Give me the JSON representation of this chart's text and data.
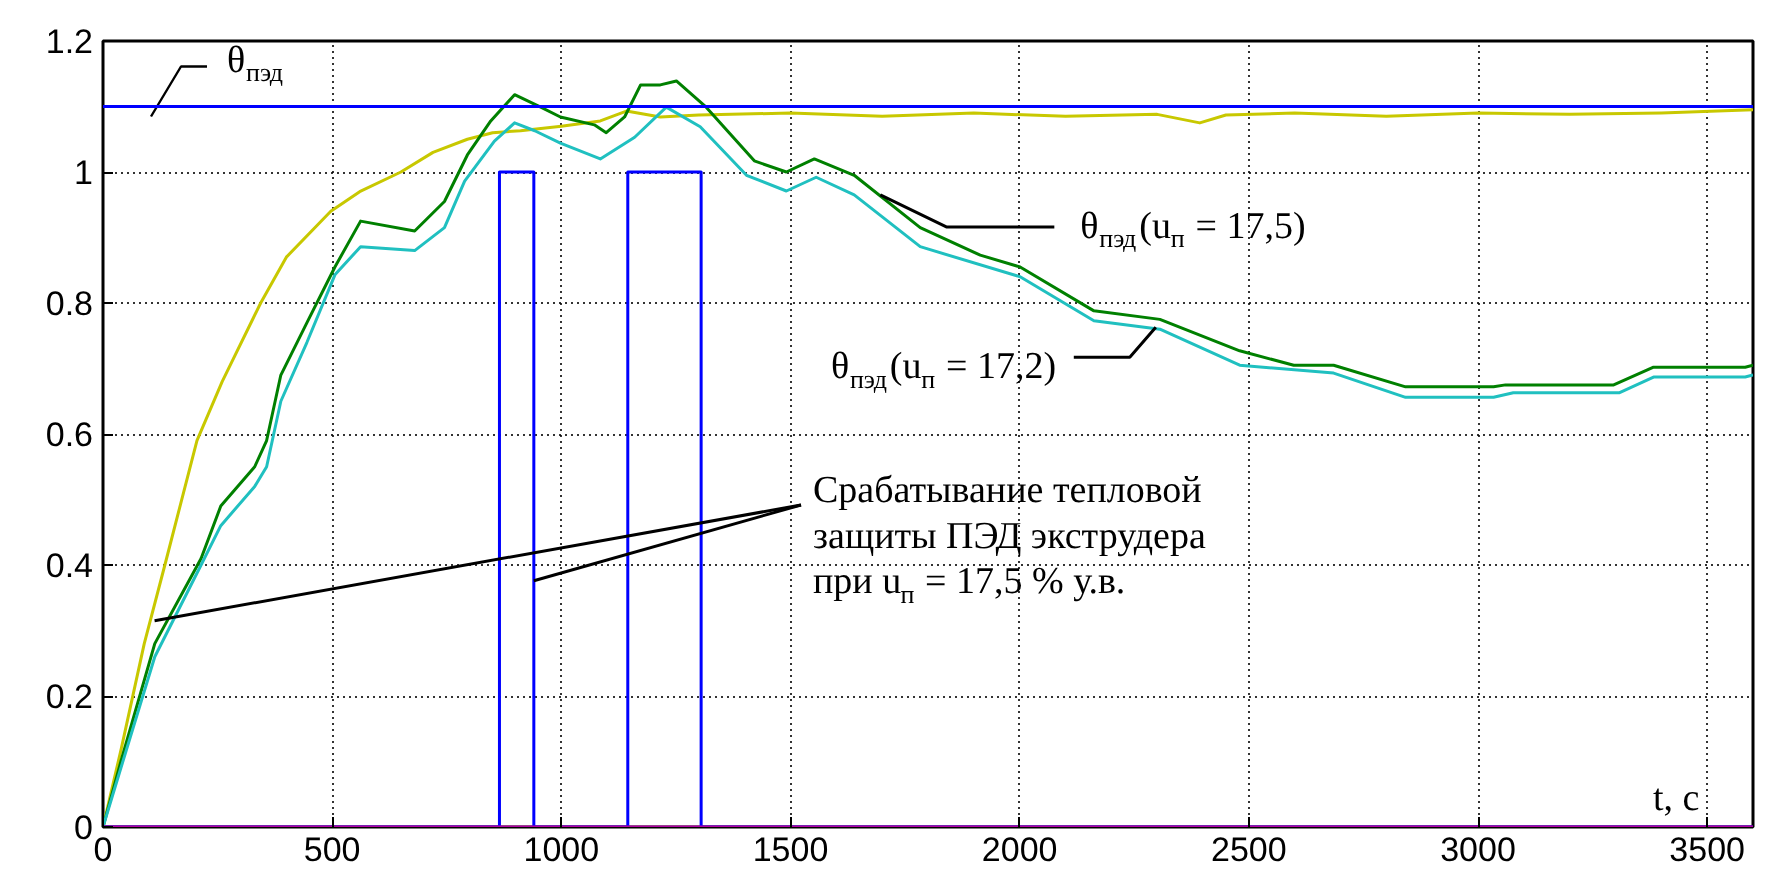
{
  "chart_data": {
    "type": "line",
    "xlabel": "t, с",
    "xlim": [
      0,
      3600
    ],
    "ylim": [
      0,
      1.2
    ],
    "xticks": [
      0,
      500,
      1000,
      1500,
      2000,
      2500,
      3000,
      3500
    ],
    "yticks": [
      0,
      0.2,
      0.4,
      0.6,
      0.8,
      {
        "value": 1,
        "label": "1"
      },
      1.2
    ],
    "grid": true,
    "line_style": "solid",
    "marker": "none",
    "series": [
      {
        "color": "#c8c800",
        "x": [
          0,
          40,
          90,
          135,
          205,
          260,
          344,
          400,
          497,
          560,
          650,
          720,
          795,
          850,
          911,
          1000,
          1085,
          1142,
          1216,
          1300,
          1500,
          1700,
          1900,
          2100,
          2300,
          2393,
          2450,
          2600,
          2800,
          3000,
          3200,
          3400,
          3600
        ],
        "values": [
          0,
          0.12,
          0.28,
          0.4,
          0.59,
          0.68,
          0.8,
          0.87,
          0.94,
          0.97,
          1.0,
          1.03,
          1.05,
          1.06,
          1.063,
          1.07,
          1.078,
          1.093,
          1.084,
          1.087,
          1.09,
          1.085,
          1.09,
          1.085,
          1.088,
          1.075,
          1.087,
          1.09,
          1.085,
          1.09,
          1.088,
          1.09,
          1.095
        ]
      },
      {
        "color": "#008000",
        "x": [
          0,
          39,
          113,
          214,
          257,
          331,
          357,
          388,
          445,
          506,
          562,
          680,
          745,
          795,
          846,
          898,
          955,
          998,
          1072,
          1098,
          1138,
          1173,
          1216,
          1251,
          1316,
          1421,
          1491,
          1552,
          1639,
          1783,
          1914,
          2001,
          2162,
          2306,
          2480,
          2598,
          2685,
          2842,
          3034,
          3060,
          3296,
          3383,
          3583,
          3600
        ],
        "values": [
          0,
          0.1,
          0.28,
          0.41,
          0.49,
          0.55,
          0.59,
          0.69,
          0.77,
          0.855,
          0.925,
          0.91,
          0.955,
          1.026,
          1.078,
          1.118,
          1.099,
          1.084,
          1.072,
          1.06,
          1.084,
          1.133,
          1.133,
          1.139,
          1.099,
          1.017,
          1.0,
          1.02,
          0.995,
          0.915,
          0.873,
          0.855,
          0.788,
          0.775,
          0.727,
          0.705,
          0.705,
          0.672,
          0.672,
          0.675,
          0.675,
          0.702,
          0.702,
          0.705
        ]
      },
      {
        "color": "#20c0c0",
        "x": [
          0,
          39,
          113,
          214,
          257,
          331,
          357,
          388,
          445,
          506,
          562,
          680,
          745,
          789,
          854,
          898,
          942,
          998,
          1085,
          1160,
          1229,
          1303,
          1404,
          1491,
          1556,
          1639,
          1783,
          2001,
          2162,
          2306,
          2480,
          2685,
          2842,
          3034,
          3077,
          3309,
          3383,
          3583,
          3600
        ],
        "values": [
          0,
          0.09,
          0.26,
          0.4,
          0.46,
          0.52,
          0.55,
          0.65,
          0.74,
          0.843,
          0.886,
          0.88,
          0.915,
          0.986,
          1.047,
          1.075,
          1.063,
          1.044,
          1.02,
          1.053,
          1.099,
          1.069,
          0.995,
          0.971,
          0.992,
          0.965,
          0.886,
          0.84,
          0.773,
          0.76,
          0.705,
          0.693,
          0.656,
          0.656,
          0.663,
          0.663,
          0.687,
          0.687,
          0.69
        ]
      },
      {
        "color": "#0000ff",
        "x": [
          0,
          865,
          865,
          940,
          940,
          1145,
          1145,
          1305,
          1305,
          3600
        ],
        "values": [
          0,
          0,
          1,
          1,
          0,
          0,
          1,
          1,
          0,
          0
        ]
      },
      {
        "color": "#b000a0",
        "x": [
          0,
          3600
        ],
        "values": [
          0,
          0
        ]
      }
    ],
    "ref_lines": [
      {
        "axis": "y",
        "value": 1.1,
        "label": "θ$_{пэд}$",
        "color": "#0000ff"
      }
    ],
    "annotations": [
      {
        "text": "θ$_{пэд}$(u$_{п}$ = 17,5)",
        "x": 1696,
        "y": 0.965
      },
      {
        "text": "θ$_{пэд}$(u$_{п}$ = 17,2)",
        "x": 2297,
        "y": 0.763
      },
      {
        "text": "Срабатывание тепловой\nзащиты ПЭД экструдера\nпри u$_{п}$ = 17,5 % у.в.",
        "x": 940,
        "y": 0.376
      }
    ]
  }
}
